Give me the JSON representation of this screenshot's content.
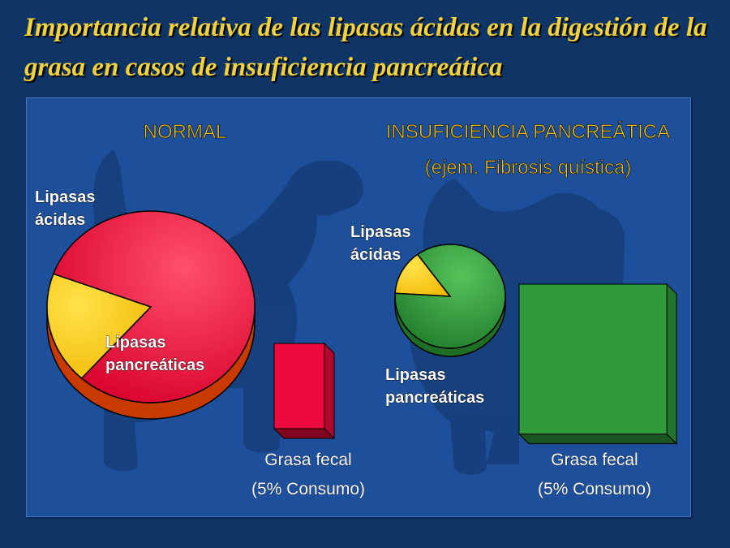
{
  "title": "Importancia relativa de las lipasas ácidas en la digestión de la grasa en casos de insuficiencia pancreática",
  "chart_data": [
    {
      "type": "pie",
      "heading": "NORMAL",
      "slices": [
        {
          "label": "Lipasas ácidas",
          "share": 0.19,
          "color": "#ffcc00"
        },
        {
          "label": "Lipasas pancreáticas",
          "share": 0.81,
          "color": "#ee0a3c"
        }
      ],
      "bar": {
        "label_lines": [
          "Grasa fecal",
          "(5% Consumo)"
        ],
        "relative_size": 1,
        "color": "#ee0a3c"
      }
    },
    {
      "type": "pie",
      "heading": "INSUFICIENCIA PANCREÁTICA",
      "subheading": "(ejem. Fibrosis quística)",
      "slices": [
        {
          "label": "Lipasas ácidas",
          "share": 0.14,
          "color": "#ffcc00"
        },
        {
          "label": "Lipasas pancreáticas",
          "share": 0.86,
          "color": "#2e9a3a"
        }
      ],
      "bar": {
        "label_lines": [
          "Grasa fecal",
          "(5% Consumo)"
        ],
        "relative_size": 3.5,
        "color": "#2e9a3a"
      }
    }
  ]
}
